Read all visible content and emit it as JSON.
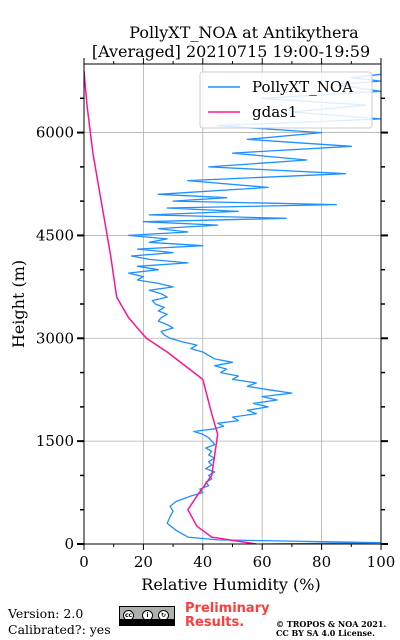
{
  "chart_data": {
    "type": "line",
    "title": "PollyXT_NOA at Antikythera",
    "subtitle": "[Averaged] 20210715 19:00-19:59",
    "xlabel": "Relative Humidity (%)",
    "ylabel": "Height (m)",
    "xlim": [
      0,
      100
    ],
    "ylim": [
      0,
      7000
    ],
    "xticks": [
      0,
      20,
      40,
      60,
      80,
      100
    ],
    "yticks": [
      0,
      1500,
      3000,
      4500,
      6000
    ],
    "grid": true,
    "legend_position": "top-right",
    "series": [
      {
        "name": "PollyXT_NOA",
        "color": "#1e90ff",
        "x": [
          60,
          100,
          45,
          35,
          31,
          28,
          29,
          30,
          29,
          31,
          36,
          40,
          39,
          42,
          41,
          43,
          42,
          44,
          41,
          43,
          42,
          44,
          42,
          43,
          41,
          44,
          43,
          42,
          40,
          37,
          44,
          47,
          45,
          52,
          50,
          58,
          55,
          62,
          57,
          65,
          60,
          70,
          62,
          55,
          58,
          50,
          52,
          46,
          48,
          44,
          50,
          44,
          42,
          40,
          36,
          38,
          33,
          29,
          27,
          26,
          30,
          28,
          25,
          26,
          28,
          25,
          27,
          24,
          23,
          28,
          26,
          22,
          30,
          25,
          18,
          20,
          15,
          25,
          18,
          35,
          22,
          16,
          30,
          18,
          40,
          22,
          28,
          15,
          35,
          25,
          45,
          20,
          68,
          22,
          52,
          28,
          85,
          30,
          48,
          25,
          62,
          35,
          88,
          42,
          75,
          50,
          90,
          55,
          80,
          45,
          100,
          70,
          95,
          60,
          100,
          85,
          100,
          90,
          100,
          100,
          100
        ],
        "y": [
          0,
          20,
          60,
          100,
          200,
          300,
          400,
          480,
          550,
          620,
          700,
          750,
          800,
          850,
          900,
          950,
          1000,
          1050,
          1100,
          1150,
          1200,
          1250,
          1300,
          1350,
          1400,
          1450,
          1500,
          1550,
          1600,
          1640,
          1680,
          1720,
          1760,
          1800,
          1850,
          1900,
          1950,
          2000,
          2050,
          2100,
          2150,
          2200,
          2250,
          2300,
          2350,
          2400,
          2450,
          2500,
          2550,
          2600,
          2650,
          2700,
          2750,
          2800,
          2850,
          2900,
          2950,
          3000,
          3050,
          3100,
          3150,
          3200,
          3250,
          3300,
          3350,
          3400,
          3450,
          3500,
          3550,
          3600,
          3650,
          3700,
          3750,
          3800,
          3850,
          3900,
          3950,
          4000,
          4050,
          4100,
          4150,
          4200,
          4250,
          4300,
          4350,
          4400,
          4450,
          4500,
          4550,
          4600,
          4650,
          4700,
          4750,
          4800,
          4850,
          4900,
          4950,
          5000,
          5050,
          5100,
          5200,
          5300,
          5400,
          5500,
          5600,
          5700,
          5800,
          5900,
          6000,
          6100,
          6200,
          6300,
          6400,
          6500,
          6600,
          6700,
          6750,
          6800,
          6850,
          6900,
          6950
        ]
      },
      {
        "name": "gdas1",
        "color": "#ff1493",
        "x": [
          58,
          43,
          38,
          35,
          38,
          43,
          44,
          45,
          43,
          40,
          28,
          21,
          15,
          11,
          9,
          7,
          5,
          3,
          1,
          0
        ],
        "y": [
          0,
          100,
          260,
          500,
          700,
          1000,
          1300,
          1600,
          1900,
          2400,
          2800,
          3000,
          3300,
          3600,
          4200,
          4700,
          5200,
          5700,
          6400,
          6900
        ]
      }
    ]
  },
  "footer": {
    "version": "Version: 2.0",
    "calibrated": "Calibrated?: yes",
    "preliminary_line1": "Preliminary",
    "preliminary_line2": "Results.",
    "copyright_line1": "© TROPOS & NOA 2021.",
    "copyright_line2": "CC BY SA 4.0 License."
  },
  "cc_badge": {
    "icon": "creative-commons-by-sa-badge",
    "by_label": "BY",
    "sa_label": "SA"
  }
}
